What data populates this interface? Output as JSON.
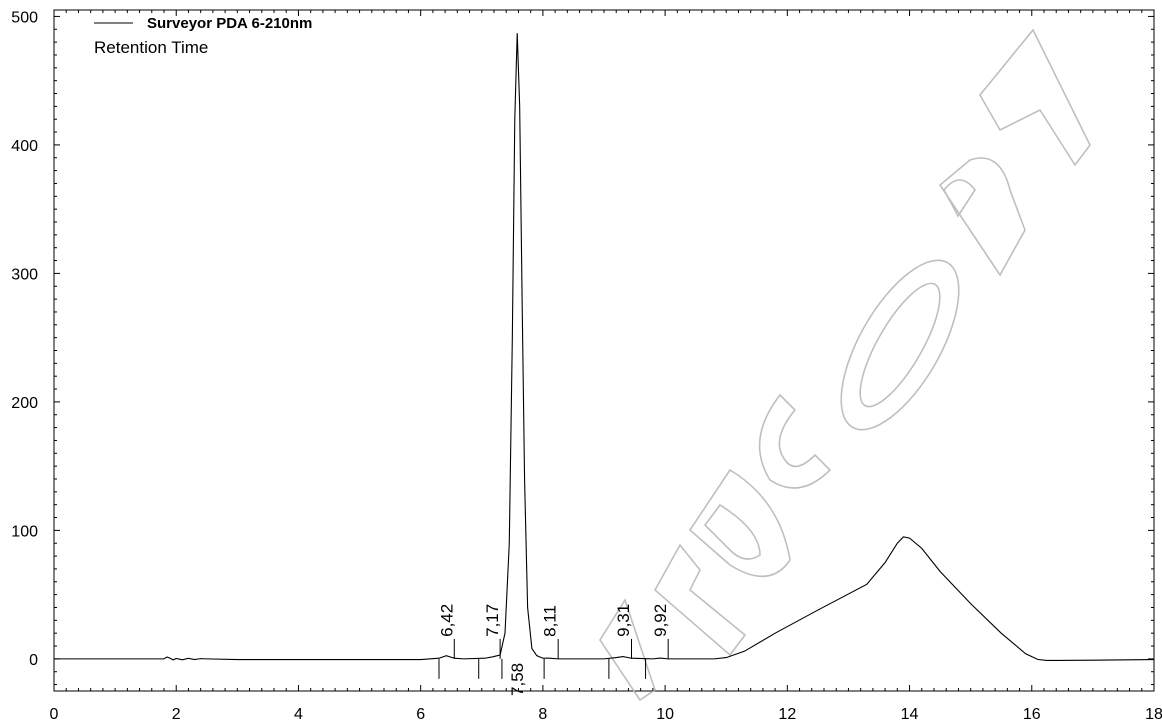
{
  "chart_data": {
    "type": "line",
    "legend": {
      "series_name": "Surveyor PDA 6-210nm",
      "subtitle": "Retention Time",
      "placement": "top-left"
    },
    "watermark": "CONTROLLED COPY",
    "xlim": [
      0,
      18
    ],
    "ylim": [
      -25,
      505
    ],
    "x_ticks": [
      "0",
      "2",
      "4",
      "6",
      "8",
      "10",
      "12",
      "14",
      "16",
      "18"
    ],
    "y_ticks": [
      "0",
      "100",
      "200",
      "300",
      "400",
      "500"
    ],
    "series": [
      {
        "name": "Surveyor PDA 6-210nm",
        "color": "#000000",
        "x": [
          0,
          1.8,
          1.85,
          1.9,
          1.95,
          2.0,
          2.1,
          2.2,
          2.3,
          2.4,
          2.5,
          3.0,
          6.0,
          6.3,
          6.42,
          6.55,
          6.7,
          7.05,
          7.17,
          7.3,
          7.38,
          7.45,
          7.5,
          7.54,
          7.58,
          7.62,
          7.66,
          7.7,
          7.75,
          7.82,
          7.9,
          8.0,
          8.11,
          8.25,
          9.0,
          9.2,
          9.31,
          9.45,
          9.8,
          9.92,
          10.05,
          10.8,
          11.0,
          11.3,
          11.8,
          12.5,
          13.3,
          13.6,
          13.8,
          13.9,
          14.0,
          14.2,
          14.5,
          15.0,
          15.5,
          15.9,
          16.1,
          16.25,
          16.4,
          17.0,
          18.0
        ],
        "y": [
          0,
          0,
          1.5,
          0.5,
          -0.8,
          0.3,
          -0.7,
          0.4,
          -0.5,
          0.2,
          0,
          -0.5,
          -0.5,
          0.5,
          2.5,
          0.5,
          0,
          0.5,
          1.5,
          3,
          20,
          90,
          250,
          420,
          487,
          430,
          280,
          140,
          40,
          8,
          2.5,
          0.5,
          0.5,
          0,
          0,
          1,
          1.8,
          0.5,
          0,
          0.6,
          0,
          0,
          1,
          6,
          20,
          38,
          58,
          75,
          90,
          95,
          94,
          86,
          68,
          43,
          20,
          4,
          -0.5,
          -1.2,
          -1.2,
          -1,
          -0.5
        ]
      }
    ],
    "peak_labels": [
      {
        "label": "6,42",
        "x": 6.42
      },
      {
        "label": "7,17",
        "x": 7.17
      },
      {
        "label": "7,58",
        "x": 7.58
      },
      {
        "label": "8,11",
        "x": 8.11
      },
      {
        "label": "9,31",
        "x": 9.31
      },
      {
        "label": "9,92",
        "x": 9.92
      }
    ],
    "integration_marks": [
      {
        "x": 6.55,
        "dir": "up"
      },
      {
        "x": 7.3,
        "dir": "up"
      },
      {
        "x": 8.25,
        "dir": "up"
      },
      {
        "x": 9.45,
        "dir": "up"
      },
      {
        "x": 10.05,
        "dir": "up"
      },
      {
        "x": 6.3,
        "dir": "down"
      },
      {
        "x": 6.95,
        "dir": "down"
      },
      {
        "x": 7.33,
        "dir": "down"
      },
      {
        "x": 8.02,
        "dir": "down"
      },
      {
        "x": 9.08,
        "dir": "down"
      },
      {
        "x": 9.68,
        "dir": "down"
      }
    ]
  }
}
